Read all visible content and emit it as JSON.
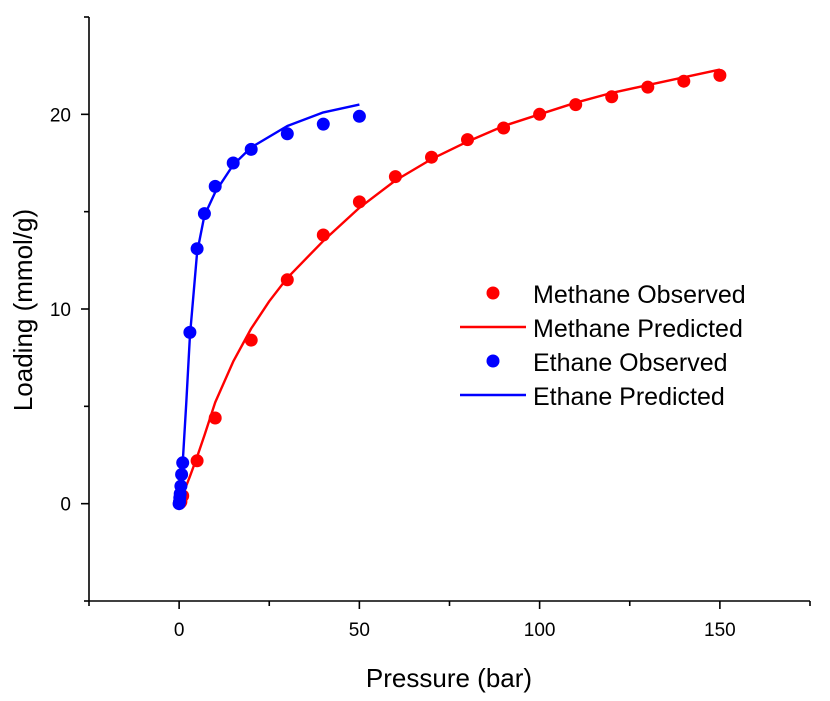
{
  "chart_data": {
    "type": "scatter",
    "title": "",
    "xlabel": "Pressure (bar)",
    "ylabel": "Loading (mmol/g)",
    "xlim": [
      -25,
      175
    ],
    "ylim": [
      -5,
      25
    ],
    "x_ticks": [
      0,
      50,
      100,
      150
    ],
    "y_ticks": [
      0,
      10,
      20
    ],
    "x_minor_ticks": [
      -25,
      25,
      75,
      125,
      175
    ],
    "y_minor_ticks": [
      -5,
      5,
      15,
      25
    ],
    "grid": false,
    "legend_position": "right",
    "series": [
      {
        "name": "Methane Observed",
        "kind": "points",
        "color": "#ff0000",
        "x": [
          0.1,
          0.3,
          0.5,
          1,
          5,
          10,
          20,
          30,
          40,
          50,
          60,
          70,
          80,
          90,
          100,
          110,
          120,
          130,
          140,
          150
        ],
        "y": [
          0.02,
          0.05,
          0.1,
          0.4,
          2.2,
          4.4,
          8.4,
          11.5,
          13.8,
          15.5,
          16.8,
          17.8,
          18.7,
          19.3,
          20.0,
          20.5,
          20.9,
          21.4,
          21.7,
          22.0
        ]
      },
      {
        "name": "Methane Predicted",
        "kind": "line",
        "color": "#ff0000",
        "x": [
          0,
          1,
          3,
          5,
          7,
          10,
          15,
          20,
          25,
          30,
          40,
          50,
          60,
          70,
          80,
          90,
          100,
          110,
          120,
          130,
          140,
          150
        ],
        "y": [
          0,
          0.45,
          1.4,
          2.4,
          3.5,
          5.2,
          7.3,
          9.0,
          10.4,
          11.6,
          13.5,
          15.2,
          16.6,
          17.7,
          18.6,
          19.4,
          20.0,
          20.6,
          21.1,
          21.5,
          21.9,
          22.3
        ]
      },
      {
        "name": "Ethane Observed",
        "kind": "points",
        "color": "#0000ff",
        "x": [
          0,
          0.1,
          0.2,
          0.3,
          0.5,
          0.7,
          1,
          3,
          5,
          7,
          10,
          15,
          20,
          30,
          40,
          50
        ],
        "y": [
          0,
          0.1,
          0.3,
          0.5,
          0.9,
          1.5,
          2.1,
          8.8,
          13.1,
          14.9,
          16.3,
          17.5,
          18.2,
          19.0,
          19.5,
          19.9
        ]
      },
      {
        "name": "Ethane Predicted",
        "kind": "line",
        "color": "#0000ff",
        "x": [
          0,
          0.5,
          1,
          2,
          3,
          5,
          7,
          10,
          15,
          20,
          30,
          40,
          50
        ],
        "y": [
          0,
          1.0,
          2.1,
          5.2,
          8.6,
          12.9,
          14.8,
          16.0,
          17.4,
          18.3,
          19.4,
          20.1,
          20.5
        ]
      }
    ]
  }
}
